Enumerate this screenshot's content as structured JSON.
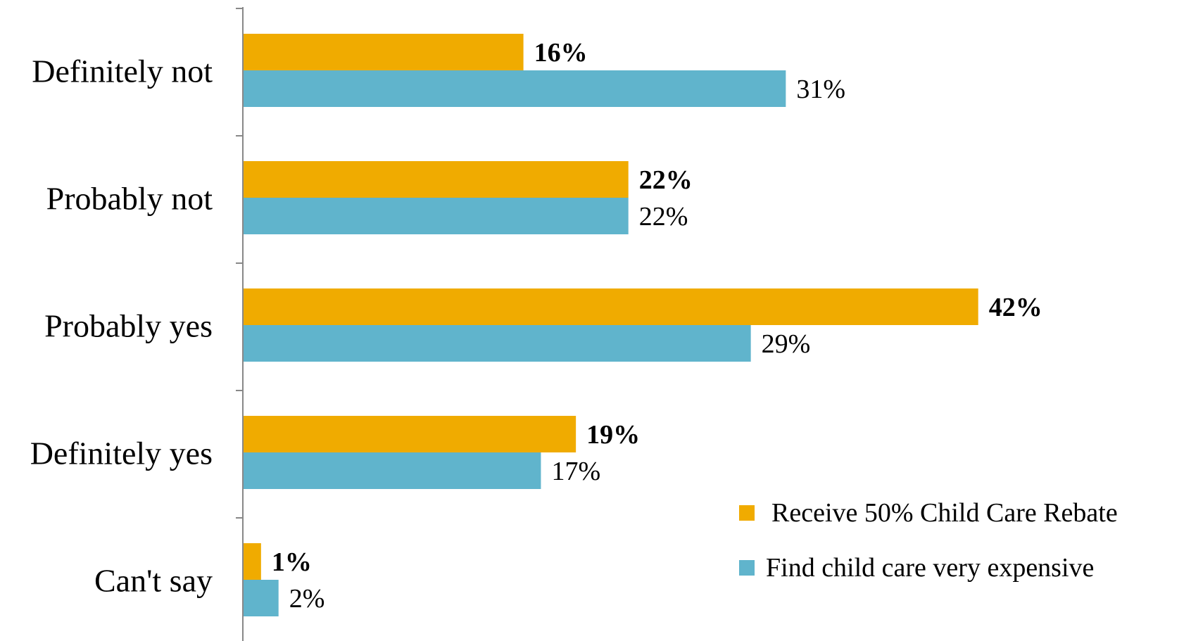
{
  "chart_data": {
    "type": "bar",
    "orientation": "horizontal",
    "categories": [
      "Definitely not",
      "Probably not",
      "Probably yes",
      "Definitely yes",
      "Can't say"
    ],
    "series": [
      {
        "name": "Receive 50% Child Care Rebate",
        "values": [
          16,
          22,
          42,
          19,
          1
        ],
        "value_labels": [
          "16%",
          "22%",
          "42%",
          "19%",
          "1%"
        ],
        "color": "#F0AB00",
        "label_style": "bold"
      },
      {
        "name": "Find child care very expensive",
        "values": [
          31,
          22,
          29,
          17,
          2
        ],
        "value_labels": [
          "31%",
          "22%",
          "29%",
          "17%",
          "2%"
        ],
        "color": "#60B4CC",
        "label_style": "normal"
      }
    ],
    "xlim": [
      0,
      42
    ],
    "unit": "%",
    "grid": false,
    "legend_position": "bottom-right"
  }
}
